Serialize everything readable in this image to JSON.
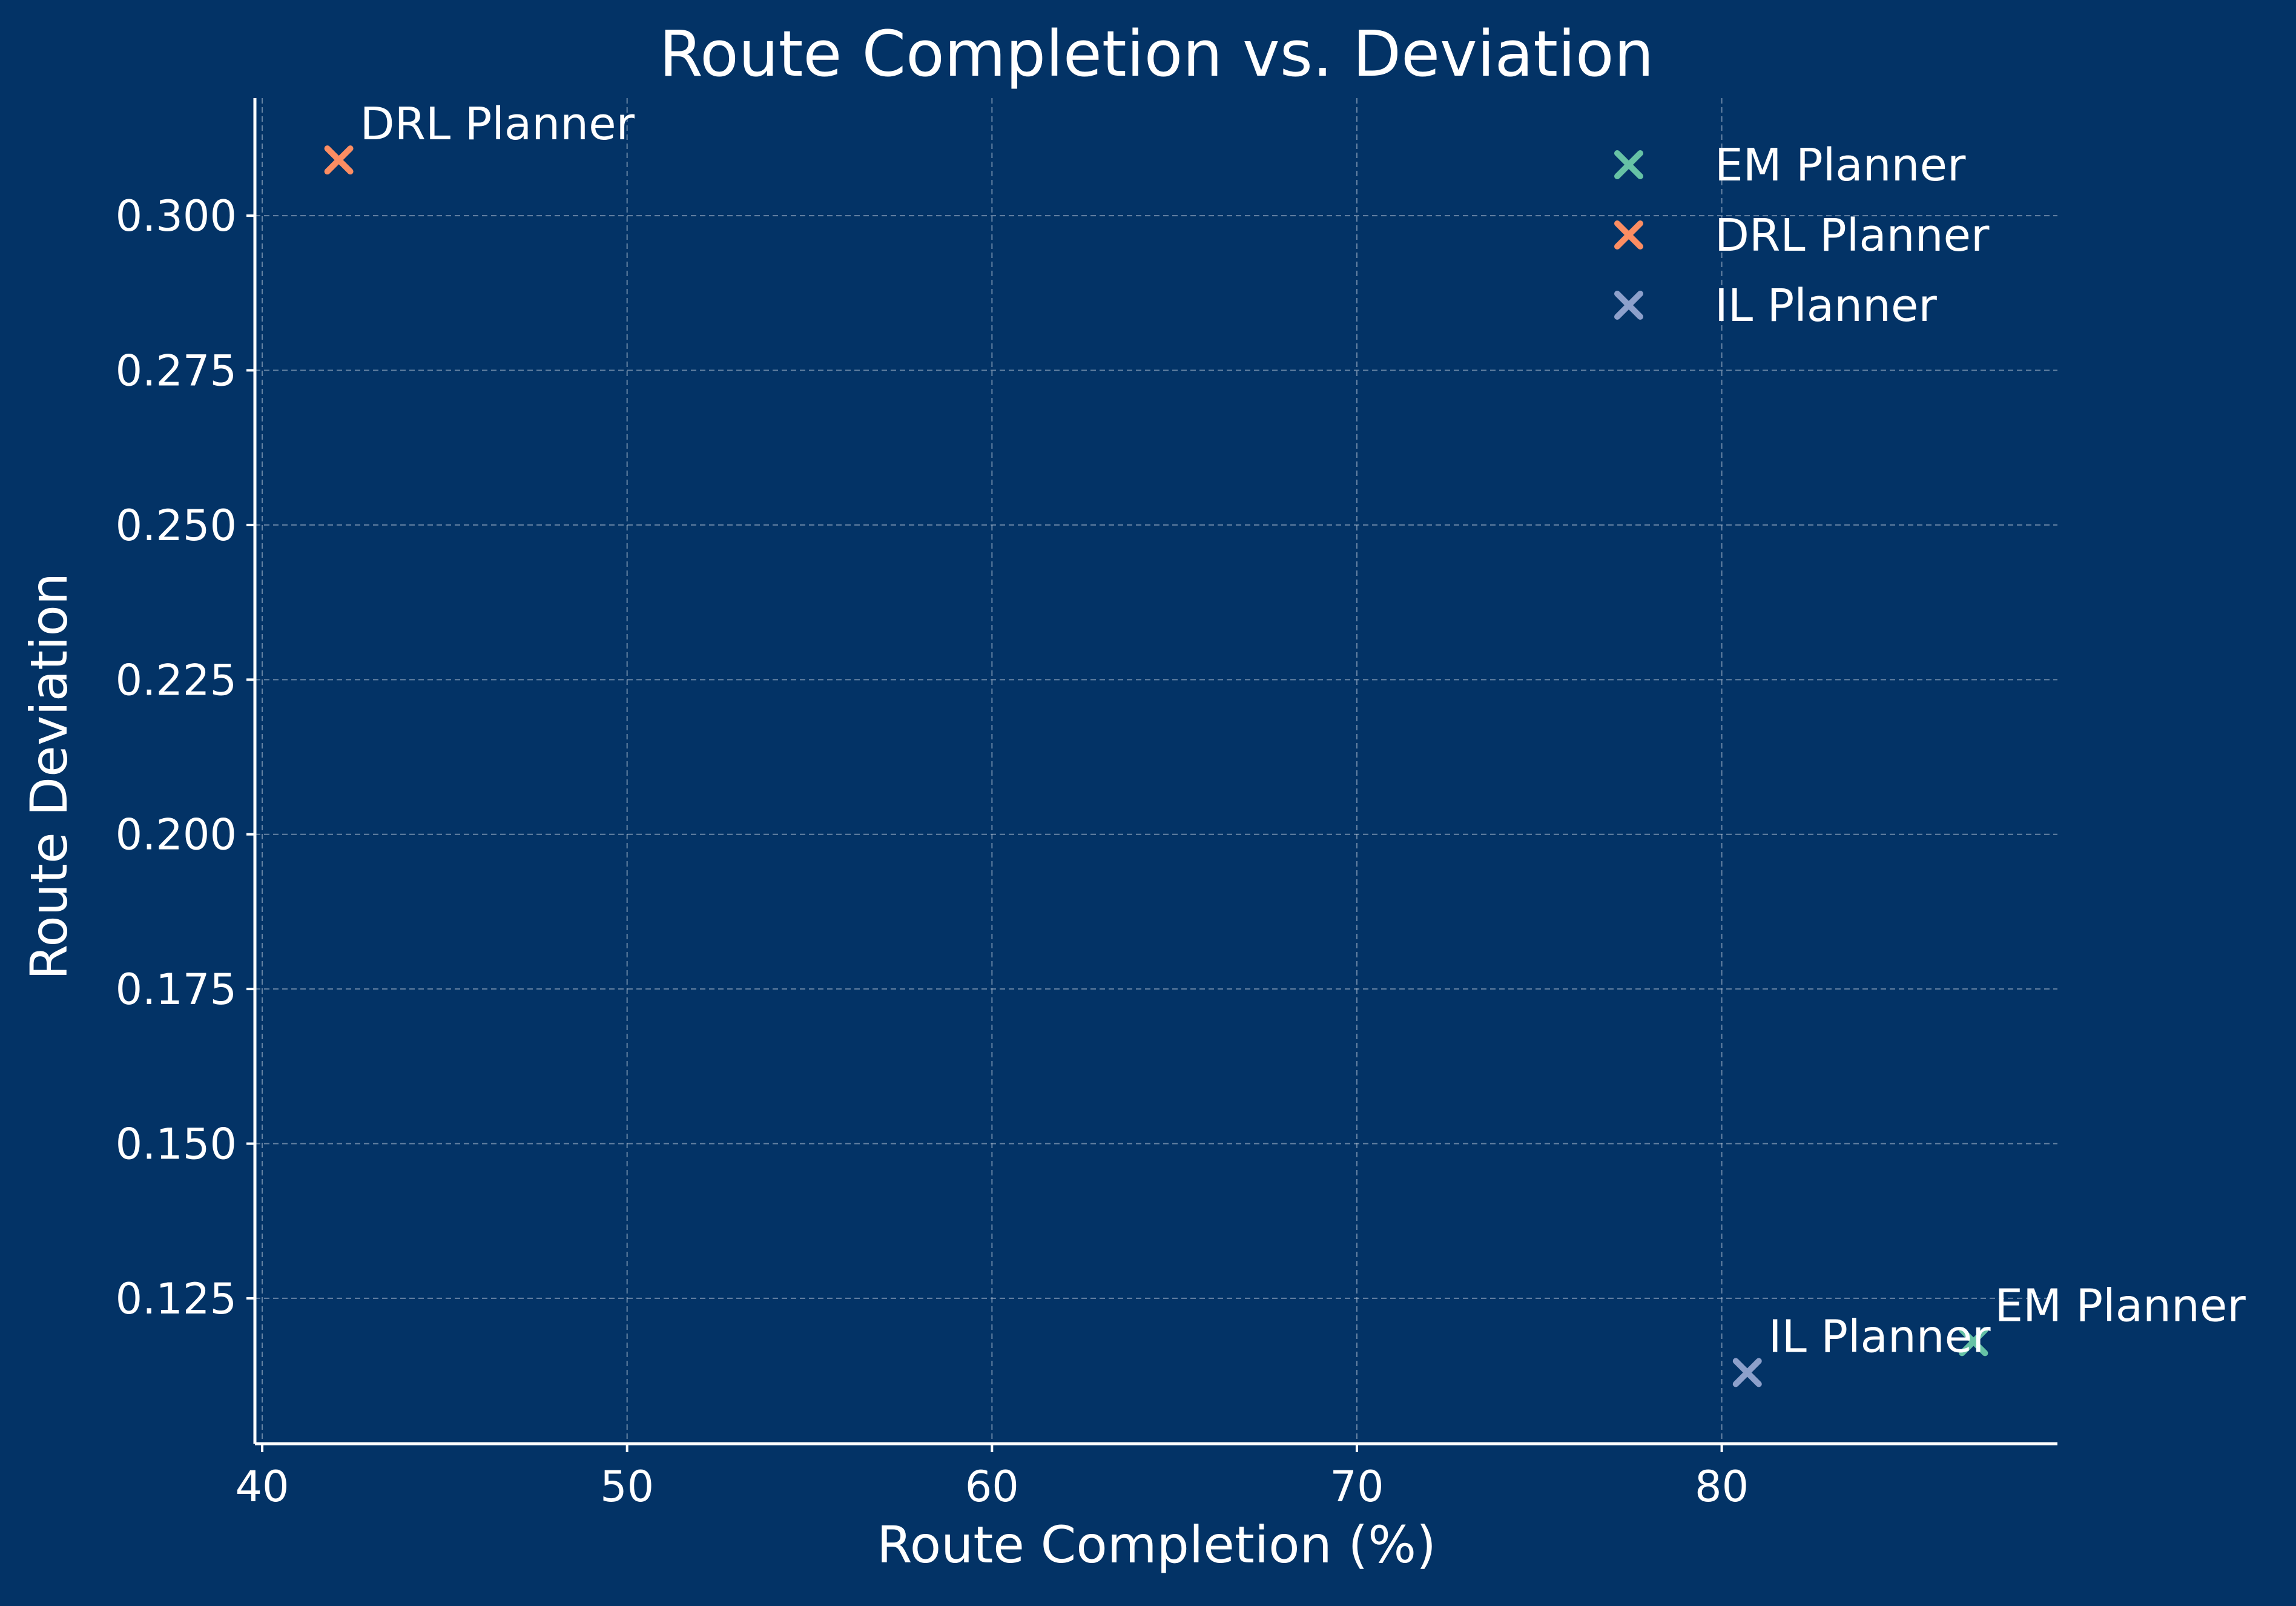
{
  "chart_data": {
    "type": "scatter",
    "title": "Route Completion vs. Deviation",
    "xlabel": "Route Completion (%)",
    "ylabel": "Route Deviation",
    "xlim": [
      39.8,
      89.2
    ],
    "ylim": [
      0.1015,
      0.319
    ],
    "xticks": [
      40,
      50,
      60,
      70,
      80
    ],
    "xtick_labels": [
      "40",
      "50",
      "60",
      "70",
      "80"
    ],
    "yticks": [
      0.125,
      0.15,
      0.175,
      0.2,
      0.225,
      0.25,
      0.275,
      0.3
    ],
    "ytick_labels": [
      "0.125",
      "0.150",
      "0.175",
      "0.200",
      "0.225",
      "0.250",
      "0.275",
      "0.300"
    ],
    "grid": true,
    "legend_position": "top-right",
    "marker": "x",
    "series": [
      {
        "name": "EM Planner",
        "color": "#66c2a5",
        "x": 86.9,
        "y": 0.118,
        "label": "EM Planner"
      },
      {
        "name": "DRL Planner",
        "color": "#fc8d62",
        "x": 42.1,
        "y": 0.309,
        "label": "DRL Planner"
      },
      {
        "name": "IL Planner",
        "color": "#8da0cb",
        "x": 80.7,
        "y": 0.113,
        "label": "IL Planner"
      }
    ]
  },
  "colors": {
    "background": "#033366",
    "axis": "#ffffff",
    "grid": "#b8c4d6"
  }
}
